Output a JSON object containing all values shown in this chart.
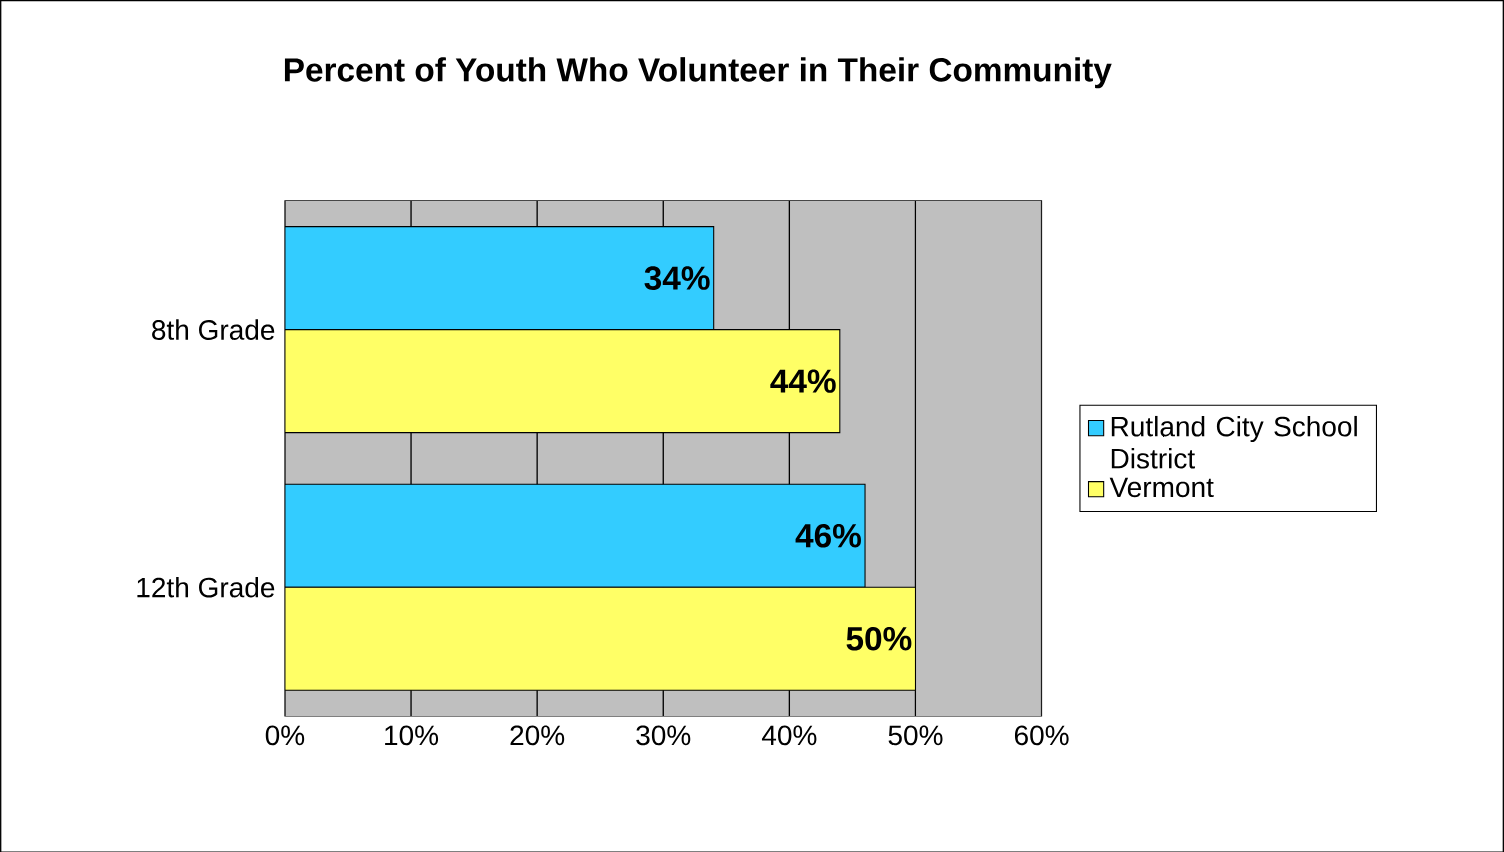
{
  "chart_data": {
    "type": "bar",
    "orientation": "horizontal",
    "title": "Percent of Youth Who Volunteer in Their Community",
    "categories": [
      "8th Grade",
      "12th Grade"
    ],
    "series": [
      {
        "name": "Rutland City School District",
        "color": "#33ccff",
        "values": [
          34,
          46
        ],
        "value_labels": [
          "34%",
          "46%"
        ]
      },
      {
        "name": "Vermont",
        "color": "#ffff66",
        "values": [
          44,
          50
        ],
        "value_labels": [
          "44%",
          "50%"
        ]
      }
    ],
    "xlim": [
      0,
      60
    ],
    "xticks": [
      {
        "value": 0,
        "label": "0%"
      },
      {
        "value": 10,
        "label": "10%"
      },
      {
        "value": 20,
        "label": "20%"
      },
      {
        "value": 30,
        "label": "30%"
      },
      {
        "value": 40,
        "label": "40%"
      },
      {
        "value": 50,
        "label": "50%"
      },
      {
        "value": 60,
        "label": "60%"
      }
    ],
    "grid": "x",
    "legend": "right"
  }
}
